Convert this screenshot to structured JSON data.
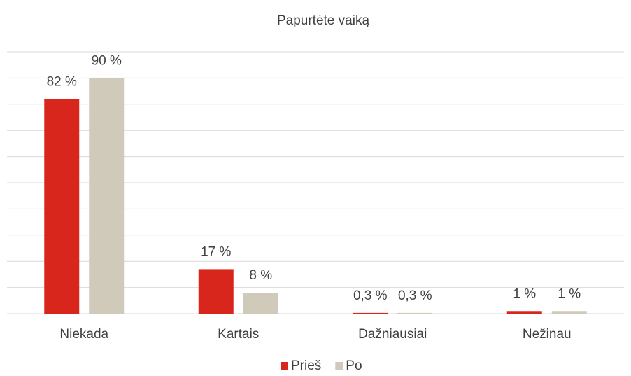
{
  "chart_data": {
    "type": "bar",
    "title": "Papurtėte vaiką",
    "categories": [
      "Niekada",
      "Kartais",
      "Dažniausiai",
      "Nežinau"
    ],
    "series": [
      {
        "name": "Prieš",
        "color": "#d9261c",
        "values": [
          82,
          17,
          0.3,
          1
        ],
        "value_labels": [
          "82 %",
          "17 %",
          "0,3 %",
          "1 %"
        ]
      },
      {
        "name": "Po",
        "color": "#d0cabb",
        "values": [
          90,
          8,
          0.3,
          1
        ],
        "value_labels": [
          "90 %",
          "8 %",
          "0,3 %",
          "1 %"
        ]
      }
    ],
    "ylim": [
      0,
      100
    ],
    "yticks": [
      0,
      10,
      20,
      30,
      40,
      50,
      60,
      70,
      80,
      90,
      100
    ],
    "grid": true,
    "legend": "bottom"
  }
}
